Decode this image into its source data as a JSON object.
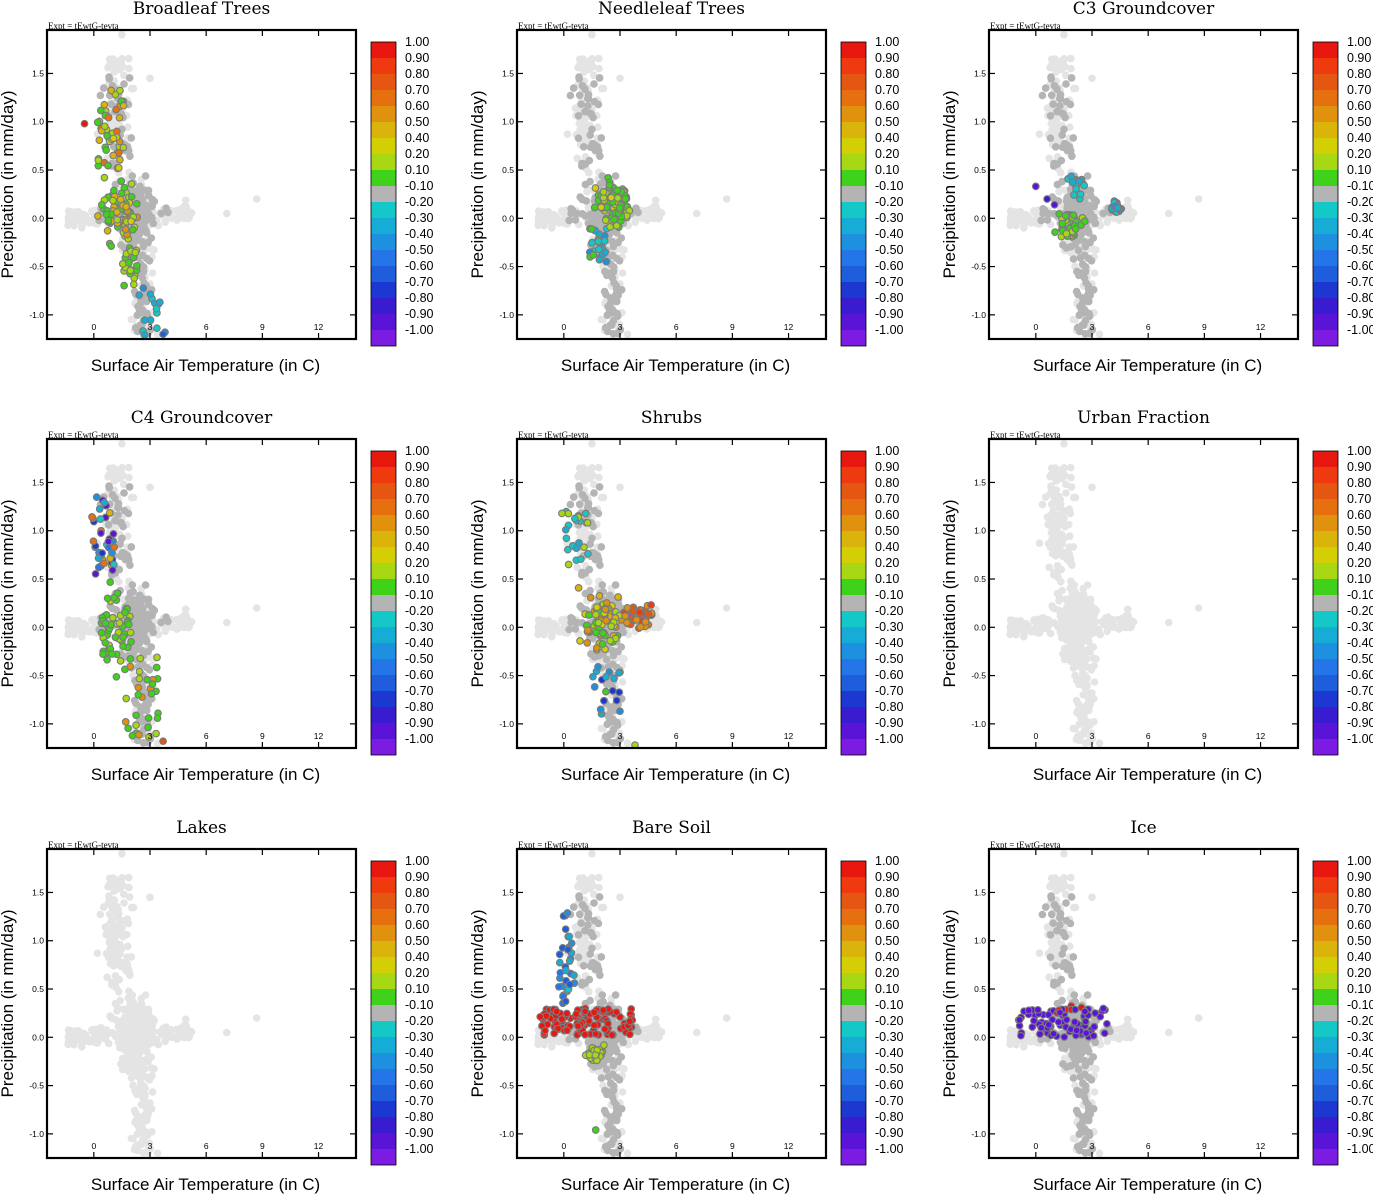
{
  "figure": {
    "expt_label": "Expt = tEwtG-tevta",
    "xlabel": "Surface Air Temperature (in C)",
    "ylabel": "Precipitation (in mm/day)",
    "colorbar_labels": [
      "1.00",
      "0.90",
      "0.80",
      "0.70",
      "0.60",
      "0.50",
      "0.40",
      "0.20",
      "0.10",
      "-0.10",
      "-0.20",
      "-0.30",
      "-0.40",
      "-0.50",
      "-0.60",
      "-0.70",
      "-0.80",
      "-0.90",
      "-1.00"
    ],
    "colors": {
      "background_points": "#e4e4e4",
      "highlight_grey": "#b4b4b4",
      "colorbar": [
        "#e8170f",
        "#ef3a0f",
        "#e45612",
        "#e6700f",
        "#e0920e",
        "#dbb40b",
        "#d4cf05",
        "#a8d714",
        "#3ed21a",
        "#b4b4b4",
        "#14c8c8",
        "#17acd6",
        "#1e90e0",
        "#2476e8",
        "#1e5edc",
        "#1c38d0",
        "#3a1cd0",
        "#5a14d8",
        "#7c1ce2"
      ]
    }
  },
  "chart_data": [
    {
      "type": "scatter",
      "title": "Broadleaf Trees",
      "xlim": [
        -2.5,
        14
      ],
      "ylim": [
        -1.25,
        1.95
      ],
      "xticks": [
        "0",
        "3",
        "6",
        "9",
        "12"
      ],
      "yticks": [
        "1.5",
        "1.0",
        "0.5",
        "0.0",
        "-0.5",
        "-1.0"
      ],
      "highlight": "broadleaf"
    },
    {
      "type": "scatter",
      "title": "Needleleaf Trees",
      "xlim": [
        -2.5,
        14
      ],
      "ylim": [
        -1.25,
        1.95
      ],
      "xticks": [
        "0",
        "3",
        "6",
        "9",
        "12"
      ],
      "yticks": [
        "1.5",
        "1.0",
        "0.5",
        "0.0",
        "-0.5",
        "-1.0"
      ],
      "highlight": "needleleaf"
    },
    {
      "type": "scatter",
      "title": "C3 Groundcover",
      "xlim": [
        -2.5,
        14
      ],
      "ylim": [
        -1.25,
        1.95
      ],
      "xticks": [
        "0",
        "3",
        "6",
        "9",
        "12"
      ],
      "yticks": [
        "1.5",
        "1.0",
        "0.5",
        "0.0",
        "-0.5",
        "-1.0"
      ],
      "highlight": "c3"
    },
    {
      "type": "scatter",
      "title": "C4 Groundcover",
      "xlim": [
        -2.5,
        14
      ],
      "ylim": [
        -1.25,
        1.95
      ],
      "xticks": [
        "0",
        "3",
        "6",
        "9",
        "12"
      ],
      "yticks": [
        "1.5",
        "1.0",
        "0.5",
        "0.0",
        "-0.5",
        "-1.0"
      ],
      "highlight": "c4"
    },
    {
      "type": "scatter",
      "title": "Shrubs",
      "xlim": [
        -2.5,
        14
      ],
      "ylim": [
        -1.25,
        1.95
      ],
      "xticks": [
        "0",
        "3",
        "6",
        "9",
        "12"
      ],
      "yticks": [
        "1.5",
        "1.0",
        "0.5",
        "0.0",
        "-0.5",
        "-1.0"
      ],
      "highlight": "shrubs"
    },
    {
      "type": "scatter",
      "title": "Urban Fraction",
      "xlim": [
        -2.5,
        14
      ],
      "ylim": [
        -1.25,
        1.95
      ],
      "xticks": [
        "0",
        "3",
        "6",
        "9",
        "12"
      ],
      "yticks": [
        "1.5",
        "1.0",
        "0.5",
        "0.0",
        "-0.5",
        "-1.0"
      ],
      "highlight": "none"
    },
    {
      "type": "scatter",
      "title": "Lakes",
      "xlim": [
        -2.5,
        14
      ],
      "ylim": [
        -1.25,
        1.95
      ],
      "xticks": [
        "0",
        "3",
        "6",
        "9",
        "12"
      ],
      "yticks": [
        "1.5",
        "1.0",
        "0.5",
        "0.0",
        "-0.5",
        "-1.0"
      ],
      "highlight": "none"
    },
    {
      "type": "scatter",
      "title": "Bare Soil",
      "xlim": [
        -2.5,
        14
      ],
      "ylim": [
        -1.25,
        1.95
      ],
      "xticks": [
        "0",
        "3",
        "6",
        "9",
        "12"
      ],
      "yticks": [
        "1.5",
        "1.0",
        "0.5",
        "0.0",
        "-0.5",
        "-1.0"
      ],
      "highlight": "baresoil"
    },
    {
      "type": "scatter",
      "title": "Ice",
      "xlim": [
        -2.5,
        14
      ],
      "ylim": [
        -1.25,
        1.95
      ],
      "xticks": [
        "0",
        "3",
        "6",
        "9",
        "12"
      ],
      "yticks": [
        "1.5",
        "1.0",
        "0.5",
        "0.0",
        "-0.5",
        "-1.0"
      ],
      "highlight": "ice"
    }
  ]
}
